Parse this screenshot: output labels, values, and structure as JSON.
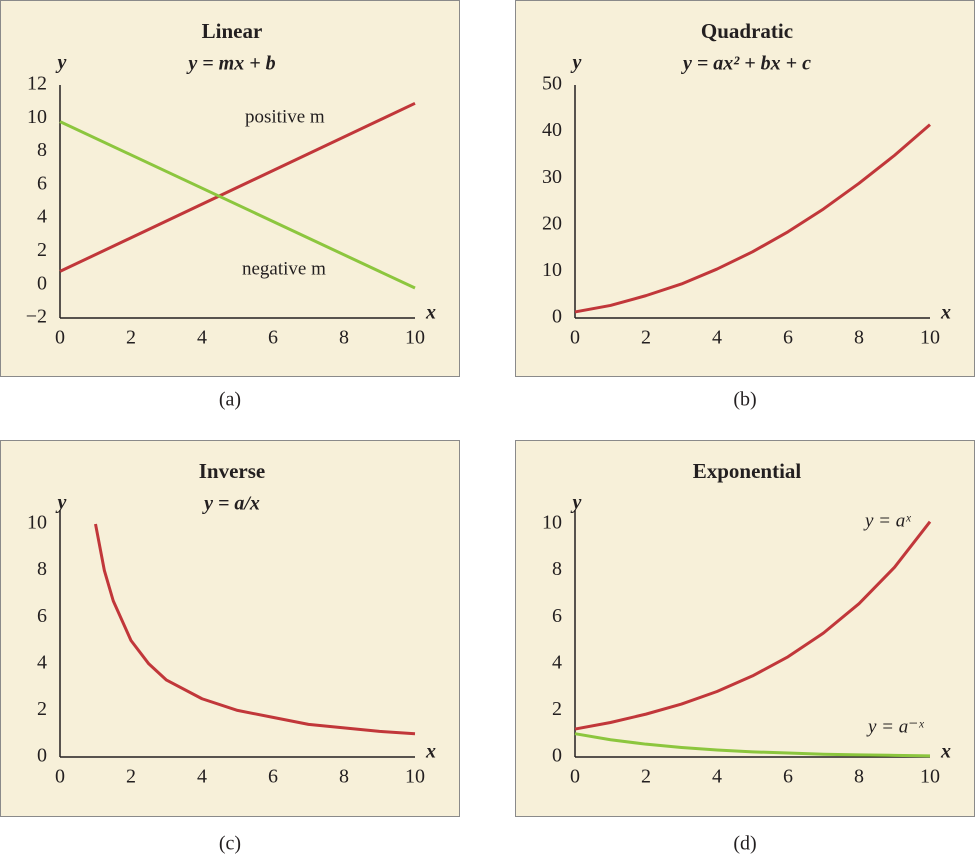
{
  "chart_data": [
    {
      "type": "line",
      "title": "Linear",
      "subtitle": "y = mx + b",
      "caption": "(a)",
      "xlabel": "x",
      "ylabel": "y",
      "x": [
        0,
        10
      ],
      "series": [
        {
          "name": "positive m",
          "color": "#c1373a",
          "values": [
            0.8,
            10.9
          ]
        },
        {
          "name": "negative m",
          "color": "#8cc63e",
          "values": [
            9.8,
            -0.2
          ]
        }
      ],
      "xlim": [
        0,
        10
      ],
      "xticks": [
        0,
        2,
        4,
        6,
        8,
        10
      ],
      "ylim": [
        -2,
        12
      ],
      "yticks": [
        {
          "value": -2,
          "label": "−2"
        },
        0,
        2,
        4,
        6,
        8,
        10,
        12
      ]
    },
    {
      "type": "line",
      "title": "Quadratic",
      "subtitle": "y = ax² + bx + c",
      "caption": "(b)",
      "xlabel": "x",
      "ylabel": "y",
      "x": [
        0,
        1,
        2,
        3,
        4,
        5,
        6,
        7,
        8,
        9,
        10
      ],
      "series": [
        {
          "color": "#c1373a",
          "values": [
            1.3,
            2.7,
            4.8,
            7.3,
            10.5,
            14.2,
            18.5,
            23.4,
            28.9,
            34.9,
            41.5
          ]
        }
      ],
      "xlim": [
        0,
        10
      ],
      "xticks": [
        0,
        2,
        4,
        6,
        8,
        10
      ],
      "ylim": [
        0,
        50
      ],
      "yticks": [
        0,
        10,
        20,
        30,
        40,
        50
      ]
    },
    {
      "type": "line",
      "title": "Inverse",
      "subtitle": "y = a/x",
      "caption": "(c)",
      "xlabel": "x",
      "ylabel": "y",
      "x": [
        1,
        1.25,
        1.5,
        2,
        2.5,
        3,
        4,
        5,
        6,
        7,
        8,
        9,
        10
      ],
      "series": [
        {
          "color": "#c1373a",
          "values": [
            10,
            8,
            6.7,
            5,
            4,
            3.3,
            2.5,
            2,
            1.7,
            1.4,
            1.25,
            1.1,
            1
          ]
        }
      ],
      "xlim": [
        0,
        10
      ],
      "xticks": [
        0,
        2,
        4,
        6,
        8,
        10
      ],
      "ylim": [
        0,
        10.6
      ],
      "yticks": [
        0,
        2,
        4,
        6,
        8,
        10
      ]
    },
    {
      "type": "line",
      "title": "Exponential",
      "caption": "(d)",
      "xlabel": "x",
      "ylabel": "y",
      "x": [
        0,
        1,
        2,
        3,
        4,
        5,
        6,
        7,
        8,
        9,
        10
      ],
      "series": [
        {
          "name": "y = aˣ",
          "color": "#c1373a",
          "values": [
            1.2,
            1.48,
            1.84,
            2.27,
            2.81,
            3.48,
            4.3,
            5.32,
            6.58,
            8.14,
            10.1
          ]
        },
        {
          "name": "y = a⁻ˣ",
          "color": "#8cc63e",
          "values": [
            1,
            0.74,
            0.55,
            0.41,
            0.3,
            0.22,
            0.17,
            0.12,
            0.09,
            0.07,
            0.05
          ]
        }
      ],
      "xlim": [
        0,
        10
      ],
      "xticks": [
        0,
        2,
        4,
        6,
        8,
        10
      ],
      "ylim": [
        0,
        10.6
      ],
      "yticks": [
        0,
        2,
        4,
        6,
        8,
        10
      ]
    }
  ]
}
